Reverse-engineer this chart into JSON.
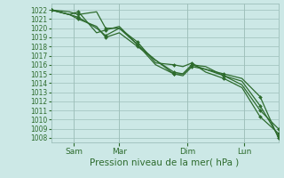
{
  "bg_color": "#cce8e6",
  "grid_color": "#9dbfba",
  "line_color": "#2d6b2d",
  "xlabel": "Pression niveau de la mer( hPa )",
  "ylim": [
    1007.5,
    1022.7
  ],
  "yticks": [
    1008,
    1009,
    1010,
    1011,
    1012,
    1013,
    1014,
    1015,
    1016,
    1017,
    1018,
    1019,
    1020,
    1021,
    1022
  ],
  "xlim": [
    0.0,
    100.0
  ],
  "xtick_positions": [
    10,
    30,
    60,
    85
  ],
  "xtick_labels": [
    "Sam",
    "Mar",
    "Dim",
    "Lun"
  ],
  "series": [
    {
      "x": [
        0,
        8,
        12,
        20,
        24,
        30,
        38,
        46,
        54,
        58,
        62,
        68,
        76,
        84,
        92,
        100
      ],
      "y": [
        1022,
        1021.5,
        1021.2,
        1020.0,
        1019.2,
        1020.0,
        1018.2,
        1016.0,
        1015.0,
        1015.0,
        1016.0,
        1015.5,
        1015.0,
        1014.5,
        1012.5,
        1008.0
      ]
    },
    {
      "x": [
        0,
        8,
        12,
        20,
        24,
        30,
        38,
        46,
        54,
        58,
        62,
        68,
        76,
        84,
        92,
        100
      ],
      "y": [
        1022,
        1021.5,
        1021.0,
        1020.2,
        1019.0,
        1019.5,
        1018.0,
        1016.5,
        1015.0,
        1014.8,
        1015.8,
        1015.5,
        1014.8,
        1014.2,
        1011.5,
        1008.2
      ]
    },
    {
      "x": [
        0,
        8,
        12,
        20,
        24,
        30,
        38,
        46,
        54,
        58,
        62,
        68,
        76,
        84,
        92,
        100
      ],
      "y": [
        1022,
        1021.8,
        1021.5,
        1021.8,
        1020.0,
        1020.0,
        1018.5,
        1016.2,
        1016.0,
        1015.8,
        1016.2,
        1015.2,
        1014.5,
        1013.5,
        1010.3,
        1008.5
      ]
    },
    {
      "x": [
        0,
        8,
        12,
        20,
        24,
        30,
        38,
        46,
        54,
        58,
        62,
        68,
        76,
        84,
        92,
        100
      ],
      "y": [
        1022,
        1021.5,
        1021.8,
        1019.5,
        1019.8,
        1020.2,
        1018.2,
        1016.5,
        1015.2,
        1015.0,
        1016.0,
        1015.8,
        1014.8,
        1013.8,
        1011.0,
        1009.0
      ]
    }
  ],
  "marker_x_series": [
    [
      0,
      12,
      24,
      38,
      54,
      62,
      76,
      92,
      100
    ],
    [
      0,
      12,
      24,
      38,
      54,
      62,
      76,
      92,
      100
    ],
    [
      0,
      12,
      24,
      38,
      54,
      62,
      76,
      92,
      100
    ],
    [
      0,
      12,
      24,
      38,
      54,
      62,
      76,
      92,
      100
    ]
  ],
  "marker_y_series": [
    [
      1022,
      1021.2,
      1019.2,
      1018.2,
      1015.0,
      1016.0,
      1015.0,
      1012.5,
      1008.0
    ],
    [
      1022,
      1021.0,
      1019.0,
      1018.0,
      1015.0,
      1015.8,
      1014.8,
      1011.5,
      1008.2
    ],
    [
      1022,
      1021.5,
      1020.0,
      1018.5,
      1016.0,
      1016.2,
      1014.5,
      1010.3,
      1008.5
    ],
    [
      1022,
      1021.8,
      1019.8,
      1018.2,
      1015.2,
      1016.0,
      1014.8,
      1011.0,
      1009.0
    ]
  ],
  "xlabel_fontsize": 7.5,
  "ytick_fontsize": 5.5,
  "xtick_fontsize": 6.5
}
